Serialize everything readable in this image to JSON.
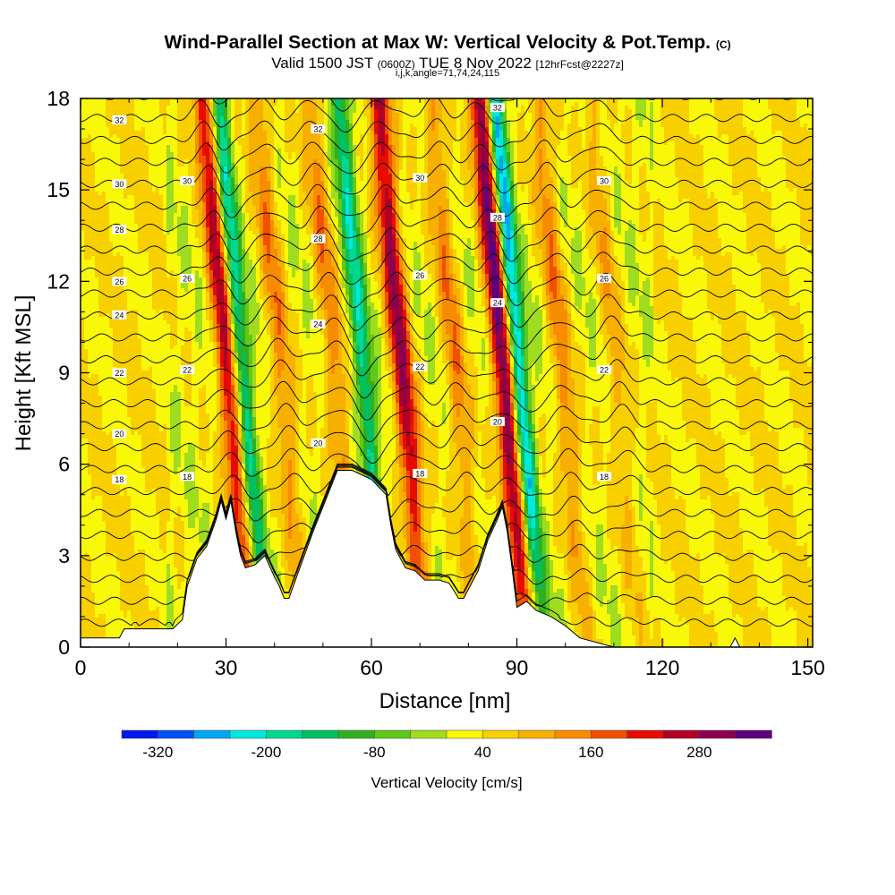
{
  "header": {
    "title": "Wind-Parallel Section at Max W: Vertical Velocity & Pot.Temp.",
    "copyright": "(C)",
    "valid_prefix": "Valid 1500 JST",
    "valid_utc": "(0600Z)",
    "valid_date": "TUE 8 Nov 2022",
    "forecast": "[12hrFcst@2227z]",
    "indices": "i,j,k,angle=71,74,24,115"
  },
  "chart_data": {
    "type": "heatmap",
    "xlabel": "Distance [nm]",
    "ylabel": "Height [Kft MSL]",
    "xlim": [
      0,
      151
    ],
    "ylim": [
      0,
      18
    ],
    "x_ticks": [
      0,
      30,
      60,
      90,
      120,
      150
    ],
    "y_ticks": [
      0,
      3,
      6,
      9,
      12,
      15,
      18
    ],
    "grid": false,
    "colorbar": {
      "label": "Vertical Velocity [cm/s]",
      "placement": "bottom",
      "tick_labels": [
        "-320",
        "-200",
        "-80",
        "40",
        "160",
        "280"
      ],
      "tick_values": [
        -320,
        -200,
        -80,
        40,
        160,
        280
      ],
      "levels": [
        -320,
        -280,
        -240,
        -200,
        -160,
        -120,
        -80,
        -40,
        0,
        40,
        80,
        120,
        160,
        200,
        240,
        280,
        320
      ],
      "colors": [
        "#0018f0",
        "#0050f8",
        "#00a8f0",
        "#00e8e0",
        "#00d890",
        "#00c060",
        "#30b020",
        "#60c818",
        "#a0dc20",
        "#f8f808",
        "#f8d000",
        "#f8b000",
        "#f88c00",
        "#f05000",
        "#e80c00",
        "#b00028",
        "#8c0050",
        "#5c0080"
      ]
    },
    "contour_field": "Potential temperature",
    "contour_labels": [
      "32",
      "30",
      "28",
      "26",
      "24",
      "22",
      "20",
      "18"
    ],
    "contour_levels_by_height": [
      {
        "height_kft": 17.3,
        "label": "32"
      },
      {
        "height_kft": 15.2,
        "label": "30"
      },
      {
        "height_kft": 13.7,
        "label": "28"
      },
      {
        "height_kft": 12.0,
        "label": "26"
      },
      {
        "height_kft": 10.9,
        "label": "24"
      },
      {
        "height_kft": 9.0,
        "label": "22"
      },
      {
        "height_kft": 7.0,
        "label": "20"
      },
      {
        "height_kft": 5.5,
        "label": "18"
      }
    ],
    "updraft_bands": [
      {
        "x": 32,
        "peak": 240
      },
      {
        "x": 43,
        "peak": 120
      },
      {
        "x": 54,
        "peak": 120
      },
      {
        "x": 68,
        "peak": 260
      },
      {
        "x": 79,
        "peak": 120
      },
      {
        "x": 89,
        "peak": 320
      },
      {
        "x": 101,
        "peak": 120
      },
      {
        "x": 112,
        "peak": 80
      }
    ],
    "downdraft_bands": [
      {
        "x": 35,
        "peak": -220
      },
      {
        "x": 60,
        "peak": -200
      },
      {
        "x": 92,
        "peak": -300
      }
    ],
    "terrain_profile": [
      [
        0,
        0.3
      ],
      [
        8,
        0.3
      ],
      [
        9,
        0.6
      ],
      [
        19,
        0.6
      ],
      [
        21,
        0.9
      ],
      [
        22,
        2.0
      ],
      [
        24,
        2.9
      ],
      [
        26,
        3.3
      ],
      [
        28,
        4.2
      ],
      [
        29,
        4.8
      ],
      [
        30,
        4.2
      ],
      [
        31,
        4.8
      ],
      [
        32,
        3.8
      ],
      [
        33,
        3.0
      ],
      [
        34,
        2.6
      ],
      [
        36,
        2.7
      ],
      [
        38,
        3.0
      ],
      [
        40,
        2.3
      ],
      [
        41,
        2.0
      ],
      [
        42,
        1.6
      ],
      [
        43,
        1.6
      ],
      [
        45,
        2.5
      ],
      [
        48,
        3.8
      ],
      [
        51,
        5.0
      ],
      [
        53,
        5.8
      ],
      [
        56,
        5.8
      ],
      [
        60,
        5.5
      ],
      [
        63,
        5.0
      ],
      [
        64,
        4.0
      ],
      [
        65,
        3.2
      ],
      [
        67,
        2.6
      ],
      [
        69,
        2.5
      ],
      [
        71,
        2.2
      ],
      [
        74,
        2.2
      ],
      [
        76,
        2.1
      ],
      [
        78,
        1.6
      ],
      [
        79,
        1.6
      ],
      [
        80,
        1.9
      ],
      [
        82,
        2.5
      ],
      [
        84,
        3.5
      ],
      [
        86,
        4.2
      ],
      [
        87,
        4.6
      ],
      [
        88,
        3.8
      ],
      [
        89,
        2.6
      ],
      [
        90,
        1.3
      ],
      [
        92,
        1.5
      ],
      [
        94,
        1.2
      ],
      [
        97,
        1.0
      ],
      [
        100,
        0.7
      ],
      [
        103,
        0.3
      ],
      [
        110,
        0.0
      ],
      [
        134,
        0.0
      ],
      [
        135,
        0.3
      ],
      [
        136,
        0.0
      ],
      [
        151,
        0.0
      ]
    ]
  }
}
